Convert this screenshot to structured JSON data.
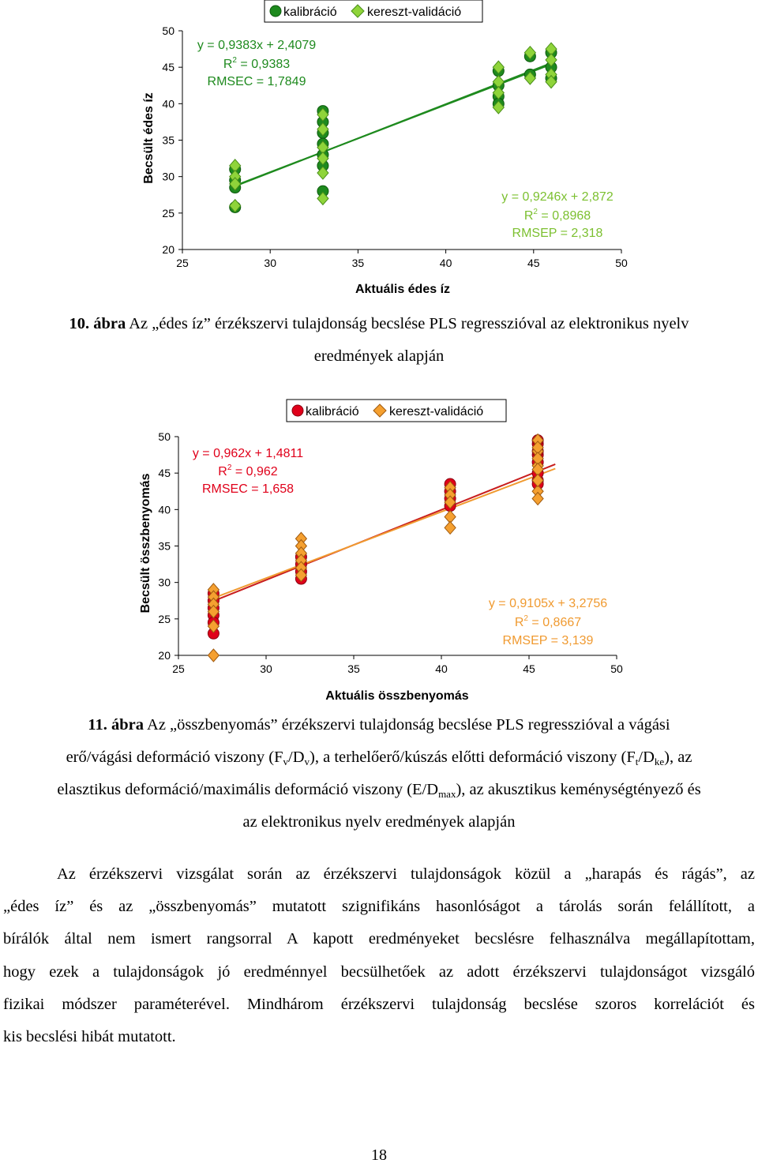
{
  "figure1": {
    "legend": {
      "calibration": "kalibráció",
      "validation": "kereszt-validáció"
    },
    "xlabel": "Aktuális édes íz",
    "ylabel": "Becsült édes íz",
    "cal_eq": {
      "eq": "y = 0,9383x + 2,4079",
      "r2_prefix": "R",
      "r2_value": " = 0,9383",
      "rmse": "RMSEC = 1,7849"
    },
    "val_eq": {
      "eq": "y = 0,9246x + 2,872",
      "r2_prefix": "R",
      "r2_value": " = 0,8968",
      "rmse": "RMSEP = 2,318"
    },
    "caption_num": "10. ábra",
    "caption_line1": " Az „édes íz” érzékszervi tulajdonság becslése PLS regresszióval az elektronikus nyelv",
    "caption_line2": "eredmények alapján"
  },
  "figure2": {
    "legend": {
      "calibration": "kalibráció",
      "validation": "kereszt-validáció"
    },
    "xlabel": "Aktuális összbenyomás",
    "ylabel": "Becsült összbenyomás",
    "cal_eq": {
      "eq": "y = 0,962x + 1,4811",
      "r2_prefix": "R",
      "r2_value": " = 0,962",
      "rmse": "RMSEC = 1,658"
    },
    "val_eq": {
      "eq": "y = 0,9105x + 3,2756",
      "r2_prefix": "R",
      "r2_value": " = 0,8667",
      "rmse": "RMSEP = 3,139"
    },
    "caption_num": "11. ábra",
    "caption_line1": " Az „összbenyomás” érzékszervi tulajdonság becslése PLS regresszióval a vágási",
    "caption_line2a": "erő/vágási deformáció viszony (F",
    "caption_sub_v1": "v",
    "caption_line2b": "/D",
    "caption_sub_v2": "v",
    "caption_line2c": "), a terhelőerő/kúszás előtti deformáció viszony (F",
    "caption_sub_t": "t",
    "caption_line2d": "/D",
    "caption_sub_ke": "ke",
    "caption_line2e": "), az",
    "caption_line3a": "elasztikus deformáció/maximális deformáció viszony (E/D",
    "caption_sub_max": "max",
    "caption_line3b": "), az akusztikus keménységtényező és",
    "caption_line4": "az elektronikus nyelv eredmények alapján"
  },
  "paragraph": [
    "Az érzékszervi vizsgálat során az érzékszervi tulajdonságok közül a „harapás és rágás”, az",
    "„édes íz” és az „összbenyomás” mutatott szignifikáns hasonlóságot a tárolás során felállított, a",
    "bírálók által nem ismert rangsorral A kapott eredményeket becslésre felhasználva megállapítottam,",
    "hogy ezek a tulajdonságok jó eredménnyel becsülhetőek az adott érzékszervi tulajdonságot vizsgáló",
    "fizikai módszer paraméterével. Mindhárom érzékszervi tulajdonság becslése szoros korrelációt és",
    "kis becslési hibát mutatott."
  ],
  "page_number": "18",
  "chart_data": [
    {
      "type": "scatter",
      "xlabel": "Aktuális édes íz",
      "ylabel": "Becsült édes íz",
      "xlim": [
        25,
        50
      ],
      "ylim": [
        20,
        50
      ],
      "xticks": [
        "25",
        "30",
        "35",
        "40",
        "45",
        "50"
      ],
      "yticks": [
        "20",
        "25",
        "30",
        "35",
        "40",
        "45",
        "50"
      ],
      "legend_position": "top",
      "colors": {
        "calibration": "#1e8a1e",
        "calibration_dark": "#0d5a0d",
        "validation": "#8fd43a",
        "validation_dark": "#4a8f1a",
        "line": "#1e8a1e"
      },
      "series": [
        {
          "name": "kalibráció",
          "marker": "circle",
          "points": [
            [
              28,
              28.5
            ],
            [
              28,
              29.5
            ],
            [
              28,
              31
            ],
            [
              28,
              25.8
            ],
            [
              33,
              39
            ],
            [
              33,
              37.5
            ],
            [
              33,
              36
            ],
            [
              33,
              34.5
            ],
            [
              33,
              33
            ],
            [
              33,
              31.5
            ],
            [
              33,
              28
            ],
            [
              43,
              44.5
            ],
            [
              43,
              42.5
            ],
            [
              43,
              41
            ],
            [
              43,
              40
            ],
            [
              44.8,
              46.5
            ],
            [
              44.8,
              44
            ],
            [
              46,
              47
            ],
            [
              46,
              45
            ],
            [
              46,
              43.5
            ]
          ]
        },
        {
          "name": "kereszt-validáció",
          "marker": "diamond",
          "points": [
            [
              28,
              31.5
            ],
            [
              28,
              30
            ],
            [
              28,
              29
            ],
            [
              28,
              26
            ],
            [
              33,
              38.5
            ],
            [
              33,
              36.5
            ],
            [
              33,
              34
            ],
            [
              33,
              32.5
            ],
            [
              33,
              30.5
            ],
            [
              33,
              27
            ],
            [
              43,
              45
            ],
            [
              43,
              43
            ],
            [
              43,
              41.5
            ],
            [
              43,
              39.5
            ],
            [
              44.8,
              47
            ],
            [
              44.8,
              43.5
            ],
            [
              46,
              47.5
            ],
            [
              46,
              46
            ],
            [
              46,
              44
            ],
            [
              46,
              43
            ]
          ]
        }
      ],
      "lines": [
        {
          "name": "kalibráció",
          "slope": 0.9383,
          "intercept": 2.4079,
          "x": [
            28,
            46
          ]
        },
        {
          "name": "kereszt-validáció",
          "slope": 0.9246,
          "intercept": 2.872,
          "x": [
            28,
            46
          ]
        }
      ]
    },
    {
      "type": "scatter",
      "xlabel": "Aktuális összbenyomás",
      "ylabel": "Becsült összbenyomás",
      "xlim": [
        25,
        50
      ],
      "ylim": [
        20,
        50
      ],
      "xticks": [
        "25",
        "30",
        "35",
        "40",
        "45",
        "50"
      ],
      "yticks": [
        "20",
        "25",
        "30",
        "35",
        "40",
        "45",
        "50"
      ],
      "legend_position": "top",
      "colors": {
        "calibration": "#e0001a",
        "calibration_dark": "#8a0010",
        "validation": "#f5a030",
        "validation_dark": "#a05a10",
        "line_cal": "#c81e1e",
        "line_val": "#f09a30"
      },
      "series": [
        {
          "name": "kalibráció",
          "marker": "circle",
          "points": [
            [
              27,
              28.5
            ],
            [
              27,
              27.5
            ],
            [
              27,
              26.5
            ],
            [
              27,
              25.5
            ],
            [
              27,
              24.5
            ],
            [
              27,
              23
            ],
            [
              32,
              33.5
            ],
            [
              32,
              32.5
            ],
            [
              32,
              31.5
            ],
            [
              32,
              30.5
            ],
            [
              40.5,
              43.5
            ],
            [
              40.5,
              42.5
            ],
            [
              40.5,
              41.5
            ],
            [
              40.5,
              40.5
            ],
            [
              45.5,
              47.5
            ],
            [
              45.5,
              44
            ],
            [
              45.5,
              49
            ],
            [
              45.5,
              46.5
            ],
            [
              45.5,
              45
            ],
            [
              45.5,
              43.5
            ],
            [
              45.5,
              48
            ],
            [
              45.5,
              49.5
            ]
          ]
        },
        {
          "name": "kereszt-validáció",
          "marker": "diamond",
          "points": [
            [
              27,
              29
            ],
            [
              27,
              28
            ],
            [
              27,
              27
            ],
            [
              27,
              26
            ],
            [
              27,
              24
            ],
            [
              27,
              20
            ],
            [
              32,
              36
            ],
            [
              32,
              35
            ],
            [
              32,
              34
            ],
            [
              32,
              33
            ],
            [
              32,
              32
            ],
            [
              32,
              31
            ],
            [
              40.5,
              43
            ],
            [
              40.5,
              42
            ],
            [
              40.5,
              41
            ],
            [
              40.5,
              39
            ],
            [
              40.5,
              37.5
            ],
            [
              45.5,
              49.5
            ],
            [
              45.5,
              48
            ],
            [
              45.5,
              46
            ],
            [
              45.5,
              42.5
            ],
            [
              45.5,
              41.5
            ],
            [
              45.5,
              48.5
            ],
            [
              45.5,
              47
            ],
            [
              45.5,
              45.5
            ],
            [
              45.5,
              44
            ]
          ]
        }
      ],
      "lines": [
        {
          "name": "kalibráció",
          "slope": 0.962,
          "intercept": 1.4811,
          "x": [
            27,
            46.5
          ]
        },
        {
          "name": "kereszt-validáció",
          "slope": 0.9105,
          "intercept": 3.2756,
          "x": [
            27,
            46.5
          ]
        }
      ]
    }
  ]
}
